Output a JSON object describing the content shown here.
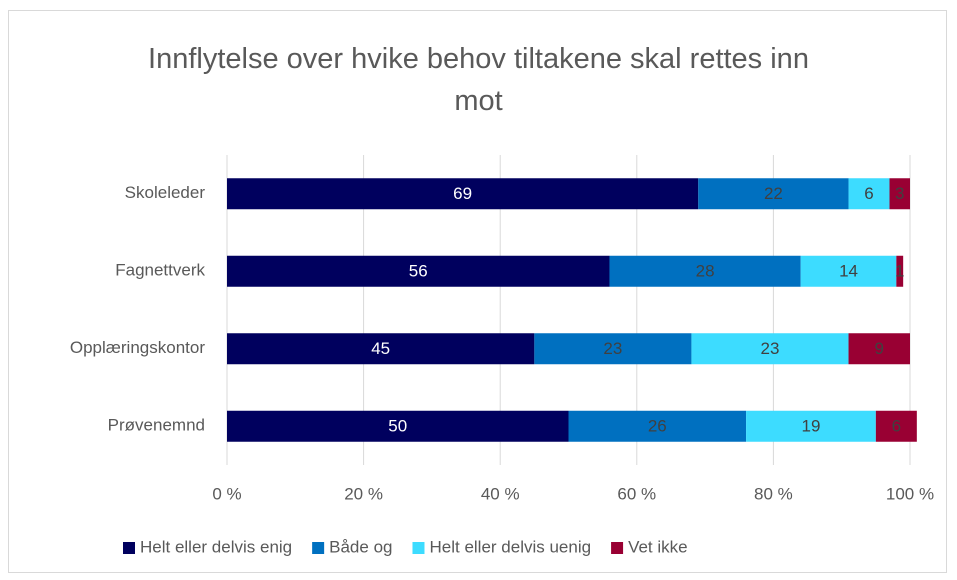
{
  "chart_data": {
    "type": "stacked_barh",
    "title": "Innflytelse over hvike behov tiltakene skal rettes inn mot",
    "categories": [
      "Skoleleder",
      "Fagnettverk",
      "Opplæringskontor",
      "Prøvenemnd"
    ],
    "series": [
      {
        "name": "Helt eller delvis enig",
        "color": "#00005e",
        "label_color": "#ffffff",
        "values": [
          69,
          56,
          45,
          50
        ]
      },
      {
        "name": "Både og",
        "color": "#0070c0",
        "label_color": "#404040",
        "values": [
          22,
          28,
          23,
          26
        ]
      },
      {
        "name": "Helt eller delvis uenig",
        "color": "#3ddcff",
        "label_color": "#404040",
        "values": [
          6,
          14,
          23,
          19
        ]
      },
      {
        "name": "Vet ikke",
        "color": "#990033",
        "label_color": "#404040",
        "values": [
          3,
          1,
          9,
          6
        ]
      }
    ],
    "xlim": [
      0,
      100
    ],
    "xticks": [
      {
        "value": 0,
        "label": "0 %"
      },
      {
        "value": 20,
        "label": "20 %"
      },
      {
        "value": 40,
        "label": "40 %"
      },
      {
        "value": 60,
        "label": "60 %"
      },
      {
        "value": 80,
        "label": "80 %"
      },
      {
        "value": 100,
        "label": "100 %"
      }
    ],
    "grid": true,
    "legend": "bottom"
  }
}
